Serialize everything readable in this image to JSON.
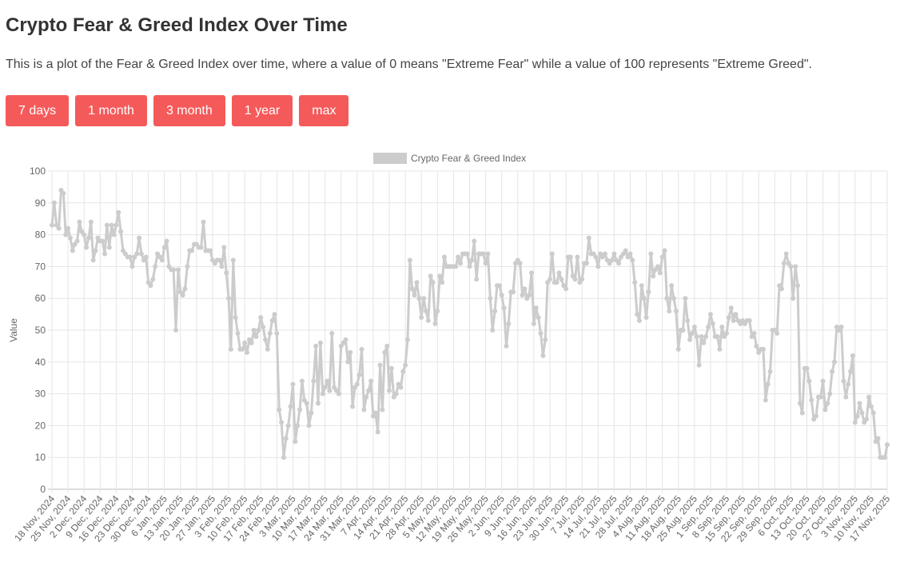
{
  "header": {
    "title": "Crypto Fear & Greed Index Over Time",
    "description": "This is a plot of the Fear & Greed Index over time, where a value of 0 means \"Extreme Fear\" while a value of 100 represents \"Extreme Greed\"."
  },
  "buttons": [
    "7 days",
    "1 month",
    "3 month",
    "1 year",
    "max"
  ],
  "chart_data": {
    "type": "line",
    "y_label": "Value",
    "ylim": [
      0,
      100
    ],
    "yticks": [
      0,
      10,
      20,
      30,
      40,
      50,
      60,
      70,
      80,
      90,
      100
    ],
    "grid": true,
    "legend": "top",
    "categories": [
      "18 Nov, 2024",
      null,
      null,
      null,
      null,
      null,
      null,
      "25 Nov, 2024",
      null,
      null,
      null,
      null,
      null,
      null,
      "2 Dec, 2024",
      null,
      null,
      null,
      null,
      null,
      null,
      "9 Dec, 2024",
      null,
      null,
      null,
      null,
      null,
      null,
      "16 Dec, 2024",
      null,
      null,
      null,
      null,
      null,
      null,
      "23 Dec, 2024",
      null,
      null,
      null,
      null,
      null,
      null,
      "30 Dec, 2024",
      null,
      null,
      null,
      null,
      null,
      null,
      "6 Jan, 2025",
      null,
      null,
      null,
      null,
      null,
      null,
      "13 Jan, 2025",
      null,
      null,
      null,
      null,
      null,
      null,
      "20 Jan, 2025",
      null,
      null,
      null,
      null,
      null,
      null,
      "27 Jan, 2025",
      null,
      null,
      null,
      null,
      null,
      null,
      "3 Feb, 2025",
      null,
      null,
      null,
      null,
      null,
      null,
      "10 Feb, 2025",
      null,
      null,
      null,
      null,
      null,
      null,
      "17 Feb, 2025",
      null,
      null,
      null,
      null,
      null,
      null,
      "24 Feb, 2025",
      null,
      null,
      null,
      null,
      null,
      null,
      "3 Mar, 2025",
      null,
      null,
      null,
      null,
      null,
      null,
      "10 Mar, 2025",
      null,
      null,
      null,
      null,
      null,
      null,
      "17 Mar, 2025",
      null,
      null,
      null,
      null,
      null,
      null,
      "24 Mar, 2025",
      null,
      null,
      null,
      null,
      null,
      null,
      "31 Mar, 2025",
      null,
      null,
      null,
      null,
      null,
      null,
      "7 Apr, 2025",
      null,
      null,
      null,
      null,
      null,
      null,
      "14 Apr, 2025",
      null,
      null,
      null,
      null,
      null,
      null,
      "21 Apr, 2025",
      null,
      null,
      null,
      null,
      null,
      null,
      "28 Apr, 2025",
      null,
      null,
      null,
      null,
      null,
      null,
      "5 May, 2025",
      null,
      null,
      null,
      null,
      null,
      null,
      "12 May, 2025",
      null,
      null,
      null,
      null,
      null,
      null,
      "19 May, 2025",
      null,
      null,
      null,
      null,
      null,
      null,
      "26 May, 2025",
      null,
      null,
      null,
      null,
      null,
      null,
      "2 Jun, 2025",
      null,
      null,
      null,
      null,
      null,
      null,
      "9 Jun, 2025",
      null,
      null,
      null,
      null,
      null,
      null,
      "16 Jun, 2025",
      null,
      null,
      null,
      null,
      null,
      null,
      "23 Jun, 2025",
      null,
      null,
      null,
      null,
      null,
      null,
      "30 Jun, 2025",
      null,
      null,
      null,
      null,
      null,
      null,
      "7 Jul, 2025",
      null,
      null,
      null,
      null,
      null,
      null,
      "14 Jul, 2025",
      null,
      null,
      null,
      null,
      null,
      null,
      "21 Jul, 2025",
      null,
      null,
      null,
      null,
      null,
      null,
      "28 Jul, 2025",
      null,
      null,
      null,
      null,
      null,
      null,
      "4 Aug, 2025",
      null,
      null,
      null,
      null,
      null,
      null,
      "11 Aug, 2025",
      null,
      null,
      null,
      null,
      null,
      null,
      "18 Aug, 2025",
      null,
      null,
      null,
      null,
      null,
      null,
      "25 Aug, 2025",
      null,
      null,
      null,
      null,
      null,
      null,
      "1 Sep, 2025",
      null,
      null,
      null,
      null,
      null,
      null,
      "8 Sep, 2025",
      null,
      null,
      null,
      null,
      null,
      null,
      "15 Sep, 2025",
      null,
      null,
      null,
      null,
      null,
      null,
      "22 Sep, 2025",
      null,
      null,
      null,
      null,
      null,
      null,
      "29 Sep, 2025",
      null,
      null,
      null,
      null,
      null,
      null,
      "6 Oct, 2025",
      null,
      null,
      null,
      null,
      null,
      null,
      "13 Oct, 2025",
      null,
      null,
      null,
      null,
      null,
      null,
      "20 Oct, 2025",
      null,
      null,
      null,
      null,
      null,
      null,
      "27 Oct, 2025",
      null,
      null,
      null,
      null,
      null,
      null,
      "3 Nov, 2025",
      null,
      null,
      null,
      null,
      null,
      null,
      "10 Nov, 2025",
      null,
      null,
      null,
      null,
      null,
      null,
      "17 Nov, 2025"
    ],
    "series": [
      {
        "name": "Crypto Fear & Greed Index",
        "color": "#cccccc",
        "values": [
          83,
          90,
          83,
          82,
          94,
          93,
          80,
          82,
          79,
          75,
          77,
          78,
          84,
          81,
          80,
          76,
          79,
          84,
          72,
          75,
          79,
          78,
          78,
          74,
          83,
          76,
          83,
          80,
          83,
          87,
          81,
          75,
          74,
          73,
          73,
          70,
          73,
          74,
          79,
          74,
          72,
          73,
          65,
          64,
          66,
          70,
          74,
          73,
          72,
          76,
          78,
          70,
          69,
          69,
          50,
          69,
          62,
          61,
          63,
          70,
          75,
          75,
          77,
          77,
          76,
          76,
          84,
          75,
          75,
          75,
          72,
          71,
          72,
          72,
          70,
          76,
          68,
          60,
          44,
          72,
          54,
          49,
          44,
          44,
          46,
          43,
          47,
          46,
          50,
          48,
          50,
          54,
          51,
          47,
          44,
          49,
          53,
          55,
          49,
          25,
          21,
          10,
          16,
          20,
          26,
          33,
          15,
          20,
          25,
          34,
          28,
          27,
          20,
          24,
          34,
          45,
          27,
          46,
          30,
          32,
          34,
          31,
          49,
          32,
          31,
          30,
          45,
          46,
          47,
          40,
          43,
          26,
          32,
          33,
          36,
          44,
          25,
          29,
          31,
          34,
          23,
          24,
          18,
          39,
          25,
          43,
          45,
          31,
          38,
          29,
          30,
          33,
          32,
          37,
          39,
          47,
          72,
          63,
          61,
          65,
          60,
          54,
          60,
          56,
          53,
          67,
          65,
          52,
          56,
          67,
          65,
          73,
          70,
          70,
          70,
          70,
          70,
          73,
          71,
          74,
          74,
          74,
          70,
          72,
          78,
          66,
          74,
          74,
          74,
          71,
          74,
          60,
          50,
          56,
          64,
          64,
          61,
          57,
          45,
          52,
          62,
          62,
          71,
          72,
          71,
          61,
          63,
          60,
          61,
          68,
          52,
          57,
          54,
          49,
          42,
          47,
          65,
          66,
          74,
          65,
          65,
          68,
          66,
          64,
          63,
          73,
          73,
          67,
          66,
          73,
          65,
          66,
          71,
          71,
          79,
          74,
          74,
          73,
          70,
          74,
          73,
          74,
          72,
          71,
          72,
          74,
          72,
          71,
          73,
          74,
          75,
          73,
          74,
          72,
          65,
          55,
          53,
          64,
          60,
          54,
          62,
          74,
          67,
          69,
          70,
          68,
          73,
          75,
          60,
          56,
          64,
          60,
          56,
          44,
          50,
          50,
          60,
          53,
          47,
          49,
          51,
          48,
          39,
          48,
          46,
          48,
          51,
          55,
          52,
          48,
          48,
          44,
          51,
          48,
          49,
          54,
          57,
          53,
          55,
          53,
          52,
          53,
          52,
          53,
          53,
          48,
          49,
          45,
          43,
          44,
          44,
          28,
          33,
          37,
          50,
          50,
          49,
          64,
          63,
          71,
          74,
          71,
          70,
          60,
          70,
          64,
          27,
          24,
          38,
          38,
          34,
          28,
          22,
          23,
          29,
          29,
          34,
          25,
          27,
          30,
          37,
          40,
          51,
          50,
          51,
          34,
          29,
          33,
          37,
          42,
          21,
          23,
          27,
          24,
          21,
          22,
          29,
          26,
          24,
          15,
          16,
          10,
          10,
          10,
          14
        ]
      }
    ]
  }
}
